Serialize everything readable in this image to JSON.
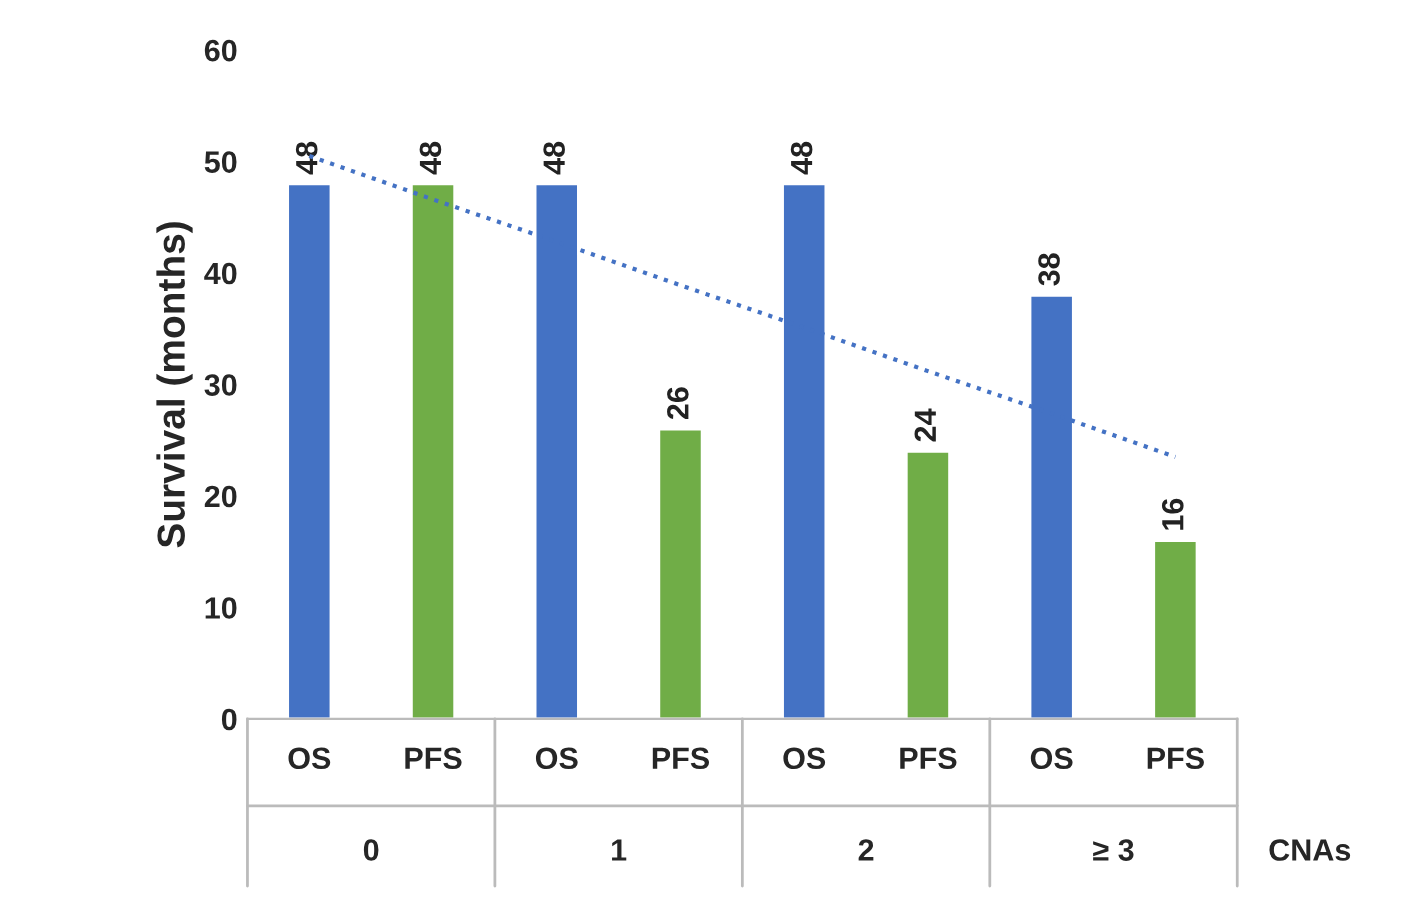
{
  "chart_data": {
    "type": "bar",
    "ylabel": "Survival (months)",
    "categories": [
      "OS",
      "PFS",
      "OS",
      "PFS",
      "OS",
      "PFS",
      "OS",
      "PFS"
    ],
    "series": [
      {
        "values": [
          48,
          48,
          48,
          26,
          48,
          24,
          38,
          16
        ],
        "value_labels": [
          "48",
          "48",
          "48",
          "26",
          "48",
          "24",
          "38",
          "16"
        ],
        "colors": [
          "#4472c4",
          "#70ad47",
          "#4472c4",
          "#70ad47",
          "#4472c4",
          "#70ad47",
          "#4472c4",
          "#70ad47"
        ]
      },
      {
        "type": "line",
        "values": [
          50.5,
          46.6,
          42.8,
          38.9,
          35.1,
          31.2,
          27.4,
          23.5
        ],
        "color": "#4472c4",
        "line_style": "dotted"
      }
    ],
    "ylim": [
      0,
      60
    ],
    "yticks": [
      0,
      10,
      20,
      30,
      40,
      50,
      60
    ],
    "grid": false,
    "legend": false,
    "annotations": [
      "0",
      "1",
      "2",
      "≥ 3",
      "CNAs"
    ]
  }
}
